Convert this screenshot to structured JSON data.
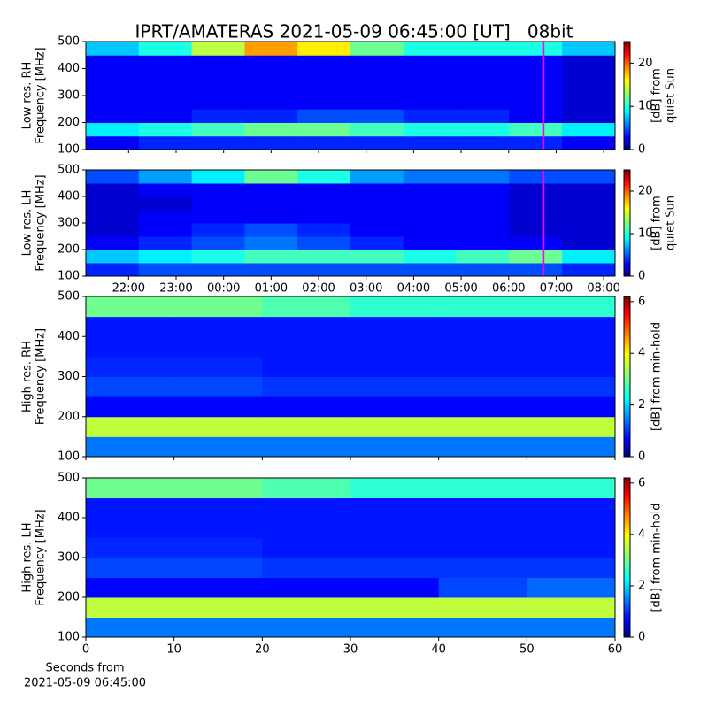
{
  "title": "IPRT/AMATERAS 2021-05-09 06:45:00 [UT]   08bit",
  "chart_data": [
    {
      "type": "heatmap",
      "ylabel": [
        "Low res. RH",
        "Frequency [MHz]"
      ],
      "xlim": [
        21.1,
        32.24
      ],
      "xticks": [
        22,
        23,
        24,
        25,
        26,
        27,
        28,
        29,
        30,
        31,
        32
      ],
      "ylim": [
        100,
        500
      ],
      "yticks": [
        100,
        200,
        300,
        400,
        500
      ],
      "colormap": "jet",
      "clim": [
        0,
        25
      ],
      "cticks": [
        0,
        10,
        20
      ],
      "colorbar_label": [
        "[dB] from",
        "quiet Sun"
      ],
      "marker": {
        "x": 30.73,
        "color": "#ff00ff"
      },
      "z": [
        [
          3,
          4,
          4,
          4,
          4,
          4,
          4,
          4,
          4,
          3
        ],
        [
          9,
          10,
          11,
          12,
          12,
          11,
          10,
          10,
          11,
          9
        ],
        [
          3,
          3,
          4,
          4,
          5,
          5,
          4,
          4,
          3,
          2
        ],
        [
          3,
          3,
          3,
          3,
          3,
          3,
          3,
          3,
          3,
          2
        ],
        [
          3,
          3,
          3,
          3,
          3,
          3,
          3,
          3,
          3,
          2
        ],
        [
          3,
          3,
          3,
          3,
          3,
          3,
          3,
          3,
          3,
          2
        ],
        [
          3,
          3,
          3,
          3,
          3,
          3,
          3,
          3,
          3,
          2
        ],
        [
          8,
          10,
          14,
          18,
          16,
          12,
          10,
          10,
          10,
          8
        ]
      ]
    },
    {
      "type": "heatmap",
      "ylabel": [
        "Low res. LH",
        "Frequency [MHz]"
      ],
      "xlim": [
        21.1,
        32.24
      ],
      "xticks": [
        {
          "value": 22,
          "label": "22:00"
        },
        {
          "value": 23,
          "label": "23:00"
        },
        {
          "value": 24,
          "label": "00:00"
        },
        {
          "value": 25,
          "label": "01:00"
        },
        {
          "value": 26,
          "label": "02:00"
        },
        {
          "value": 27,
          "label": "03:00"
        },
        {
          "value": 28,
          "label": "04:00"
        },
        {
          "value": 29,
          "label": "05:00"
        },
        {
          "value": 30,
          "label": "06:00"
        },
        {
          "value": 31,
          "label": "07:00"
        },
        {
          "value": 32,
          "label": "08:00"
        }
      ],
      "ylim": [
        100,
        500
      ],
      "yticks": [
        100,
        200,
        300,
        400,
        500
      ],
      "colormap": "jet",
      "clim": [
        0,
        25
      ],
      "cticks": [
        0,
        10,
        20
      ],
      "colorbar_label": [
        "[dB] from",
        "quiet Sun"
      ],
      "marker": {
        "x": 30.73,
        "color": "#ff00ff"
      },
      "z": [
        [
          4,
          5,
          5,
          5,
          5,
          5,
          5,
          5,
          5,
          4
        ],
        [
          8,
          9,
          10,
          11,
          11,
          11,
          10,
          11,
          12,
          9
        ],
        [
          3,
          4,
          5,
          6,
          5,
          4,
          3,
          3,
          3,
          2
        ],
        [
          2,
          3,
          4,
          5,
          4,
          3,
          3,
          3,
          2,
          2
        ],
        [
          2,
          3,
          3,
          3,
          3,
          3,
          3,
          3,
          2,
          2
        ],
        [
          2,
          2,
          3,
          3,
          3,
          3,
          3,
          3,
          2,
          2
        ],
        [
          2,
          3,
          3,
          3,
          3,
          3,
          3,
          3,
          2,
          2
        ],
        [
          5,
          7,
          9,
          12,
          10,
          7,
          6,
          6,
          5,
          5
        ]
      ]
    },
    {
      "type": "heatmap",
      "ylabel": [
        "High res. RH",
        "Frequency [MHz]"
      ],
      "xlim": [
        0,
        60
      ],
      "xticks": [
        0,
        10,
        20,
        30,
        40,
        50,
        60
      ],
      "ylim": [
        100,
        500
      ],
      "yticks": [
        100,
        200,
        300,
        400,
        500
      ],
      "colormap": "jet",
      "clim": [
        0,
        6.2
      ],
      "cticks": [
        0,
        2,
        4,
        6
      ],
      "colorbar_label": [
        "[dB] from min-hold"
      ],
      "z": [
        [
          1.5,
          1.5,
          1.5,
          1.5,
          1.5,
          1.5
        ],
        [
          3.5,
          3.5,
          3.5,
          3.5,
          3.5,
          3.5
        ],
        [
          0.8,
          0.8,
          0.8,
          0.8,
          0.8,
          0.8
        ],
        [
          1.2,
          1.2,
          1.1,
          1.1,
          1.1,
          1.1
        ],
        [
          1,
          1,
          0.9,
          0.9,
          0.9,
          0.9
        ],
        [
          0.9,
          0.9,
          0.9,
          0.9,
          0.9,
          0.9
        ],
        [
          0.9,
          0.9,
          0.9,
          0.9,
          0.9,
          0.9
        ],
        [
          3,
          3,
          2.8,
          2.6,
          2.6,
          2.6
        ]
      ]
    },
    {
      "type": "heatmap",
      "ylabel": [
        "High res. LH",
        "Frequency [MHz]"
      ],
      "xlim": [
        0,
        60
      ],
      "xticks": [
        0,
        10,
        20,
        30,
        40,
        50,
        60
      ],
      "xlabel": [
        "Seconds from",
        "2021-05-09 06:45:00"
      ],
      "ylim": [
        100,
        500
      ],
      "yticks": [
        100,
        200,
        300,
        400,
        500
      ],
      "colormap": "jet",
      "clim": [
        0,
        6.2
      ],
      "cticks": [
        0,
        2,
        4,
        6
      ],
      "colorbar_label": [
        "[dB] from min-hold"
      ],
      "z": [
        [
          1.5,
          1.5,
          1.5,
          1.5,
          1.5,
          1.5
        ],
        [
          3.5,
          3.5,
          3.5,
          3.5,
          3.5,
          3.5
        ],
        [
          0.8,
          0.8,
          0.8,
          0.8,
          1.2,
          1.4
        ],
        [
          1.2,
          1.2,
          1.1,
          1.1,
          1.1,
          1.1
        ],
        [
          1,
          1,
          0.9,
          0.9,
          0.9,
          0.9
        ],
        [
          0.9,
          0.9,
          0.9,
          0.9,
          0.9,
          0.9
        ],
        [
          0.9,
          0.9,
          0.9,
          0.9,
          0.9,
          0.9
        ],
        [
          3,
          3,
          2.8,
          2.6,
          2.6,
          2.6
        ]
      ]
    }
  ]
}
